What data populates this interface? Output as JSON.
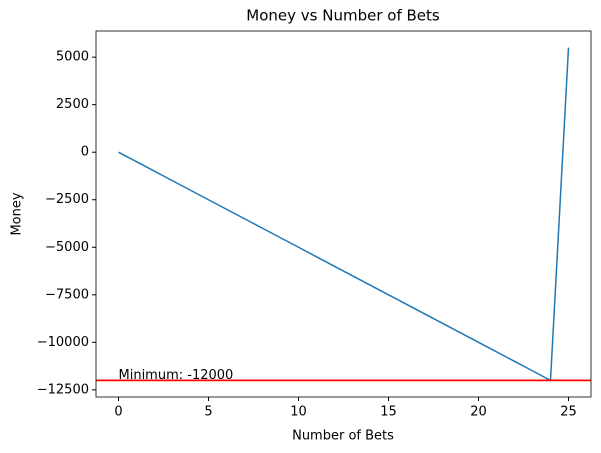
{
  "chart_data": {
    "type": "line",
    "title": "Money vs Number of Bets",
    "x_label": "Number of Bets",
    "y_label": "Money",
    "x": [
      0,
      1,
      2,
      3,
      4,
      5,
      6,
      7,
      8,
      9,
      10,
      11,
      12,
      13,
      14,
      15,
      16,
      17,
      18,
      19,
      20,
      21,
      22,
      23,
      24,
      25
    ],
    "series": [
      {
        "color": "#1f77b4",
        "values": [
          0,
          -500,
          -1000,
          -1500,
          -2000,
          -2500,
          -3000,
          -3500,
          -4000,
          -4500,
          -5000,
          -5500,
          -6000,
          -6500,
          -7000,
          -7500,
          -8000,
          -8500,
          -9000,
          -9500,
          -10000,
          -10500,
          -11000,
          -11500,
          -12000,
          5500
        ]
      }
    ],
    "hline": {
      "value": -12000,
      "color": "#ff0000"
    },
    "annotation": "Minimum: -12000",
    "xlim": [
      -1.25,
      26.25
    ],
    "ylim": [
      -12875,
      6375
    ],
    "xticks": [
      0,
      5,
      10,
      15,
      20,
      25
    ],
    "yticks": [
      {
        "value": -12500,
        "label": "−12500"
      },
      {
        "value": -10000,
        "label": "−10000"
      },
      {
        "value": -7500,
        "label": "−7500"
      },
      {
        "value": -5000,
        "label": "−5000"
      },
      {
        "value": -2500,
        "label": "−2500"
      },
      0,
      2500,
      5000
    ]
  }
}
